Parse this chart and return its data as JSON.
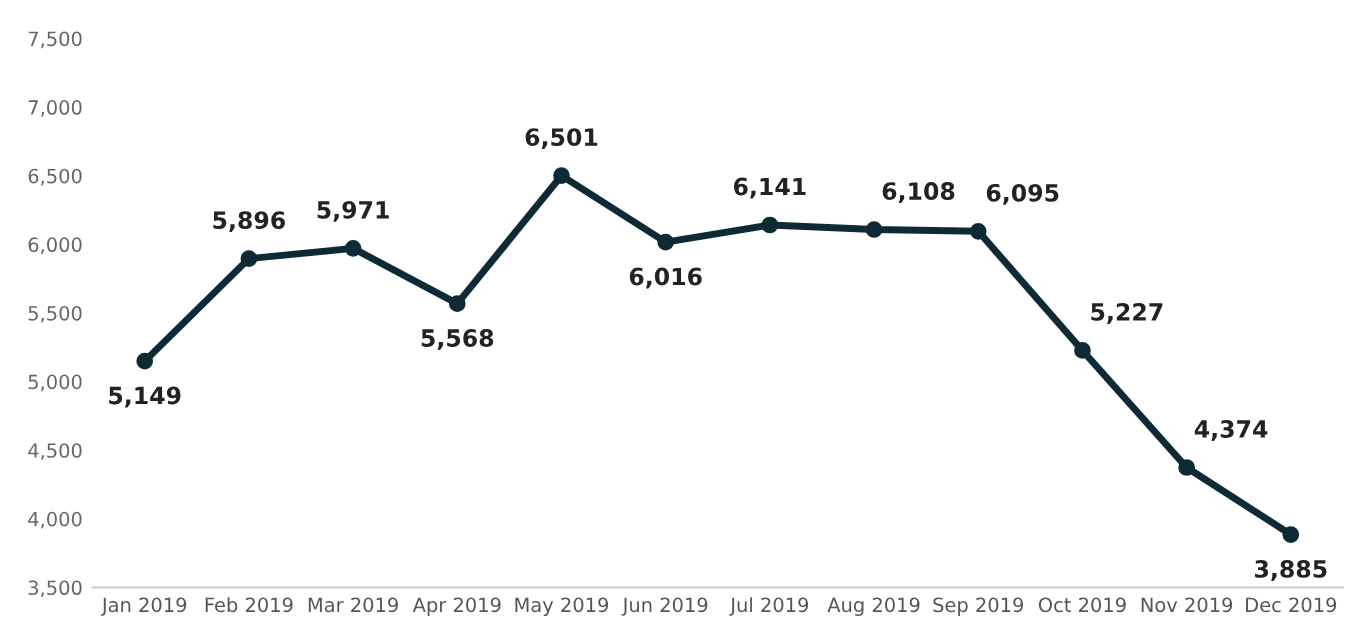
{
  "chart_data": {
    "type": "line",
    "categories": [
      "Jan 2019",
      "Feb 2019",
      "Mar 2019",
      "Apr 2019",
      "May 2019",
      "Jun 2019",
      "Jul 2019",
      "Aug 2019",
      "Sep 2019",
      "Oct 2019",
      "Nov 2019",
      "Dec 2019"
    ],
    "series": [
      {
        "color": "#0e2a35",
        "values": [
          5149,
          5896,
          5971,
          5568,
          6501,
          6016,
          6141,
          6108,
          6095,
          5227,
          4374,
          3885
        ],
        "value_labels": [
          "5,149",
          "5,896",
          "5,971",
          "5,568",
          "6,501",
          "6,016",
          "6,141",
          "6,108",
          "6,095",
          "5,227",
          "4,374",
          "3,885"
        ]
      }
    ],
    "ylim": [
      3500,
      7500
    ],
    "yticks": [
      {
        "value": 3500,
        "label": "3,500"
      },
      {
        "value": 4000,
        "label": "4,000"
      },
      {
        "value": 4500,
        "label": "4,500"
      },
      {
        "value": 5000,
        "label": "5,000"
      },
      {
        "value": 5500,
        "label": "5,500"
      },
      {
        "value": 6000,
        "label": "6,000"
      },
      {
        "value": 6500,
        "label": "6,500"
      },
      {
        "value": 7000,
        "label": "7,000"
      },
      {
        "value": 7500,
        "label": "7,500"
      }
    ],
    "grid": false,
    "marker": "circle",
    "line_style": "solid"
  }
}
